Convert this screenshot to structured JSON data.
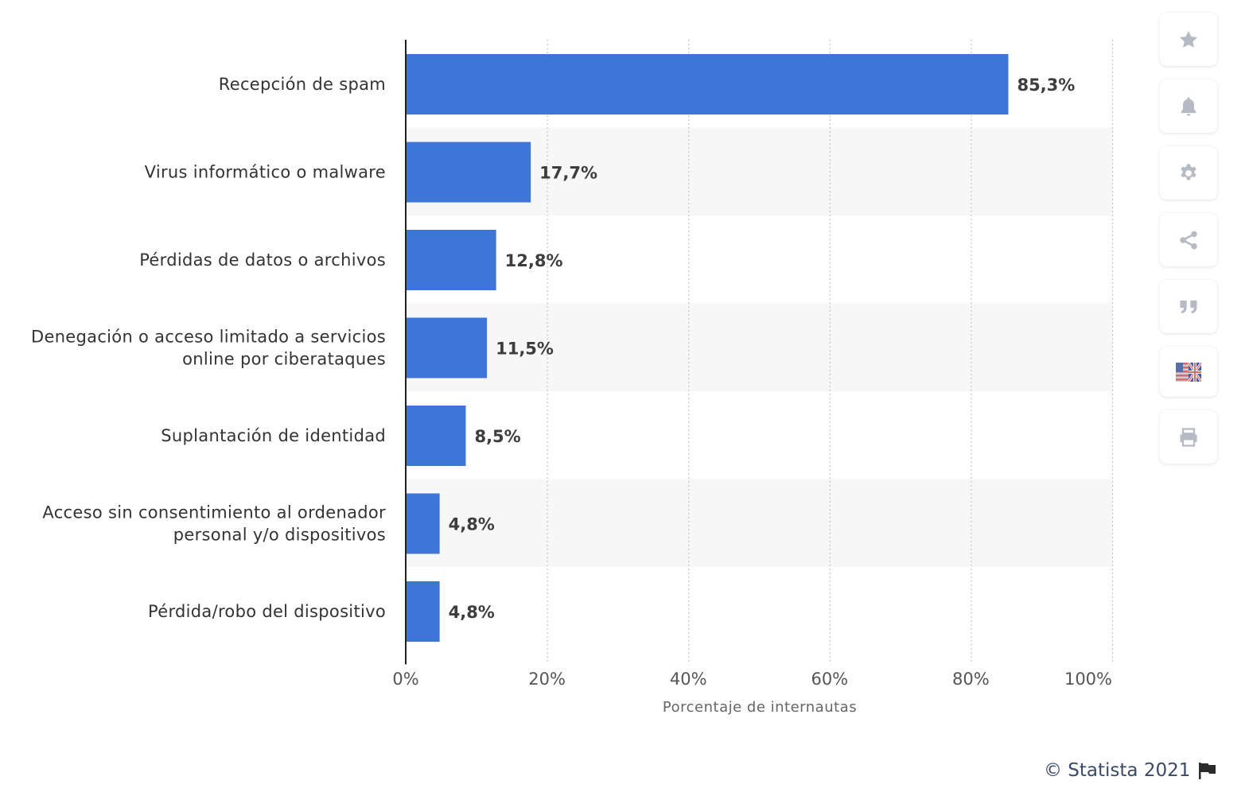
{
  "chart_data": {
    "type": "bar",
    "orientation": "horizontal",
    "categories": [
      [
        "Recepción de spam"
      ],
      [
        "Virus informático o malware"
      ],
      [
        "Pérdidas de datos o archivos"
      ],
      [
        "Denegación o acceso limitado a servicios",
        "online por ciberataques"
      ],
      [
        "Suplantación de identidad"
      ],
      [
        "Acceso sin consentimiento al ordenador",
        "personal y/o dispositivos"
      ],
      [
        "Pérdida/robo del dispositivo"
      ]
    ],
    "values": [
      85.3,
      17.7,
      12.8,
      11.5,
      8.5,
      4.8,
      4.8
    ],
    "value_labels": [
      "85,3%",
      "17,7%",
      "12,8%",
      "11,5%",
      "8,5%",
      "4,8%",
      "4,8%"
    ],
    "xlim": [
      0,
      100
    ],
    "xticks": [
      0,
      20,
      40,
      60,
      80,
      100
    ],
    "xtick_labels": [
      "0%",
      "20%",
      "40%",
      "60%",
      "80%",
      "100%"
    ],
    "xlabel": "Porcentaje de internautas",
    "ylabel": "",
    "title": "",
    "grid": "vertical dotted",
    "bar_color": "#3d76d6",
    "stripe_color": "#f7f7f7"
  },
  "toolbar": {
    "buttons": [
      {
        "name": "favorite-button",
        "icon": "star-icon"
      },
      {
        "name": "notification-button",
        "icon": "bell-icon"
      },
      {
        "name": "settings-button",
        "icon": "gear-icon"
      },
      {
        "name": "share-button",
        "icon": "share-icon"
      },
      {
        "name": "cite-button",
        "icon": "quote-icon"
      },
      {
        "name": "language-button",
        "icon": "flag-icon"
      },
      {
        "name": "print-button",
        "icon": "printer-icon"
      }
    ],
    "icon_color": "#b5bac4"
  },
  "credits": {
    "text": "© Statista 2021",
    "icon": "flag-pennant-icon"
  }
}
